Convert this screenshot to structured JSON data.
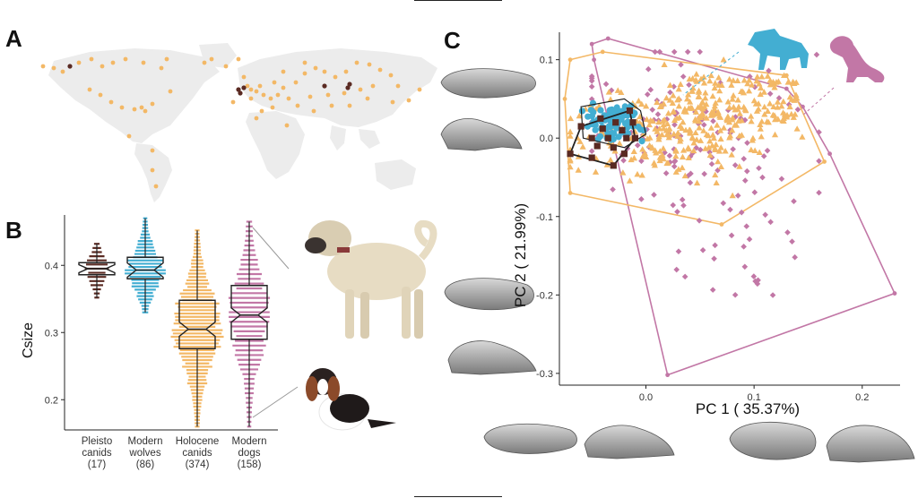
{
  "panels": {
    "a": "A",
    "b": "B",
    "c": "C"
  },
  "colors": {
    "pleisto": "#5a2a22",
    "wolves": "#43aed2",
    "holocene": "#f3b866",
    "dogs": "#c277a6",
    "map_land": "#ececec",
    "axis": "#333333"
  },
  "map": {
    "sites_holocene_label": "Holocene canids",
    "sites_pleisto_label": "Pleisto canids"
  },
  "boxplot": {
    "ylabel": "Csize",
    "yticks": [
      "0.2",
      "0.3",
      "0.4"
    ],
    "groups": [
      {
        "name": "Pleisto",
        "name2": "canids",
        "n": "(17)",
        "median": 0.395,
        "q1": 0.386,
        "q3": 0.404,
        "low": 0.352,
        "high": 0.432
      },
      {
        "name": "Modern",
        "name2": "wolves",
        "n": "(86)",
        "median": 0.393,
        "q1": 0.38,
        "q3": 0.412,
        "low": 0.33,
        "high": 0.47
      },
      {
        "name": "Holocene",
        "name2": "canids",
        "n": "(374)",
        "median": 0.305,
        "q1": 0.276,
        "q3": 0.348,
        "low": 0.16,
        "high": 0.452
      },
      {
        "name": "Modern",
        "name2": "dogs",
        "n": "(158)",
        "median": 0.326,
        "q1": 0.29,
        "q3": 0.37,
        "low": 0.16,
        "high": 0.465
      }
    ]
  },
  "chart_data": {
    "type": "scatter",
    "xlabel": "PC 1 ( 35.37%)",
    "ylabel": "PC 2 ( 21.99%)",
    "xlim": [
      -0.08,
      0.235
    ],
    "ylim": [
      -0.315,
      0.135
    ],
    "xticks": [
      "0.0",
      "0.1",
      "0.2"
    ],
    "yticks": [
      "0.1",
      "0.0",
      "-0.1",
      "-0.2",
      "-0.3"
    ],
    "hulls": {
      "dogs": [
        [
          -0.05,
          0.12
        ],
        [
          -0.035,
          0.127
        ],
        [
          0.13,
          0.063
        ],
        [
          0.145,
          0.04
        ],
        [
          0.17,
          -0.02
        ],
        [
          0.23,
          -0.198
        ],
        [
          0.02,
          -0.302
        ],
        [
          -0.048,
          0.1
        ]
      ],
      "holocene": [
        [
          -0.07,
          0.1
        ],
        [
          -0.04,
          0.11
        ],
        [
          0.13,
          0.08
        ],
        [
          0.165,
          -0.03
        ],
        [
          0.07,
          -0.11
        ],
        [
          -0.07,
          -0.07
        ],
        [
          -0.075,
          0.05
        ]
      ],
      "wolves": [
        [
          -0.06,
          0.04
        ],
        [
          -0.02,
          0.05
        ],
        [
          -0.005,
          0.035
        ],
        [
          0.0,
          0.005
        ],
        [
          -0.02,
          -0.012
        ],
        [
          -0.058,
          0.0
        ]
      ],
      "pleisto": [
        [
          -0.07,
          -0.02
        ],
        [
          -0.06,
          0.015
        ],
        [
          -0.015,
          0.035
        ],
        [
          -0.01,
          0.0
        ],
        [
          -0.03,
          -0.035
        ]
      ]
    },
    "series": [
      {
        "name": "Modern dogs",
        "marker": "diamond",
        "color": "#c277a6",
        "count": 158
      },
      {
        "name": "Holocene canids",
        "marker": "triangle",
        "color": "#f3b866",
        "count": 374
      },
      {
        "name": "Modern wolves",
        "marker": "circle",
        "color": "#43aed2",
        "count": 86
      },
      {
        "name": "Pleisto canids",
        "marker": "square",
        "color": "#5a2a22",
        "count": 17
      }
    ]
  }
}
